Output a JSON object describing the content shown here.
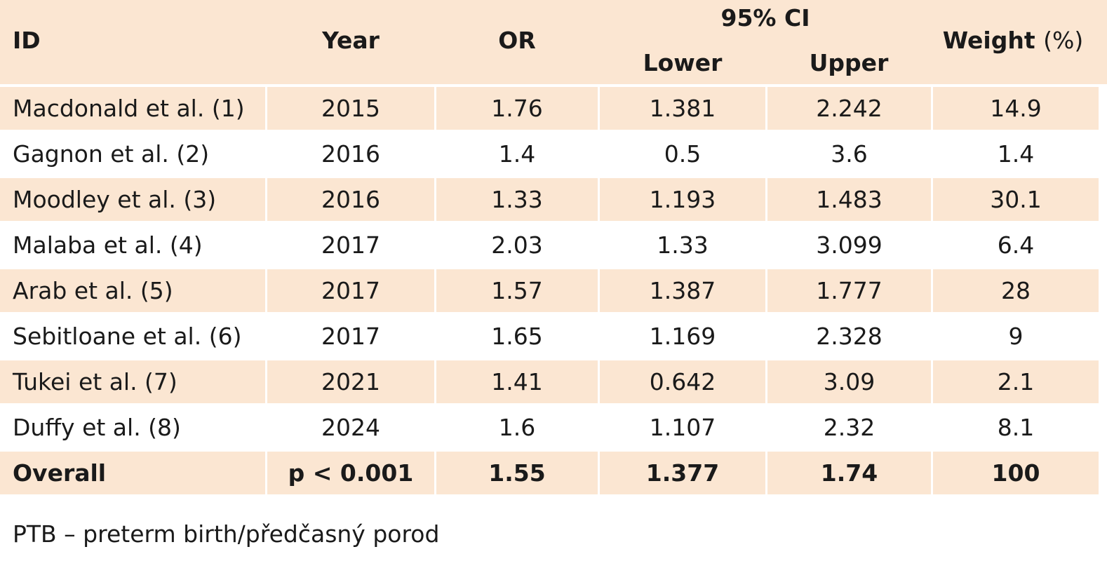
{
  "header": {
    "id": "ID",
    "year": "Year",
    "or": "OR",
    "ci_group": "95% CI",
    "lower": "Lower",
    "upper": "Upper",
    "weight": "Weight",
    "weight_unit": "(%)"
  },
  "rows": [
    {
      "id": "Macdonald et al. (1)",
      "year": "2015",
      "or": "1.76",
      "lower": "1.381",
      "upper": "2.242",
      "weight": "14.9"
    },
    {
      "id": "Gagnon et al. (2)",
      "year": "2016",
      "or": "1.4",
      "lower": "0.5",
      "upper": "3.6",
      "weight": "1.4"
    },
    {
      "id": "Moodley et al. (3)",
      "year": "2016",
      "or": "1.33",
      "lower": "1.193",
      "upper": "1.483",
      "weight": "30.1"
    },
    {
      "id": "Malaba et al. (4)",
      "year": "2017",
      "or": "2.03",
      "lower": "1.33",
      "upper": "3.099",
      "weight": "6.4"
    },
    {
      "id": "Arab et al. (5)",
      "year": "2017",
      "or": "1.57",
      "lower": "1.387",
      "upper": "1.777",
      "weight": "28"
    },
    {
      "id": "Sebitloane et al. (6)",
      "year": "2017",
      "or": "1.65",
      "lower": "1.169",
      "upper": "2.328",
      "weight": "9"
    },
    {
      "id": "Tukei et al. (7)",
      "year": "2021",
      "or": "1.41",
      "lower": "0.642",
      "upper": "3.09",
      "weight": "2.1"
    },
    {
      "id": "Duffy et al. (8)",
      "year": "2024",
      "or": "1.6",
      "lower": "1.107",
      "upper": "2.32",
      "weight": "8.1"
    }
  ],
  "overall": {
    "id": "Overall",
    "year": "p < 0.001",
    "or": "1.55",
    "lower": "1.377",
    "upper": "1.74",
    "weight": "100"
  },
  "footnote": "PTB – preterm birth/předčasný porod",
  "colors": {
    "row_shade": "#fbe6d2",
    "background": "#ffffff",
    "text": "#1a1a1a"
  }
}
